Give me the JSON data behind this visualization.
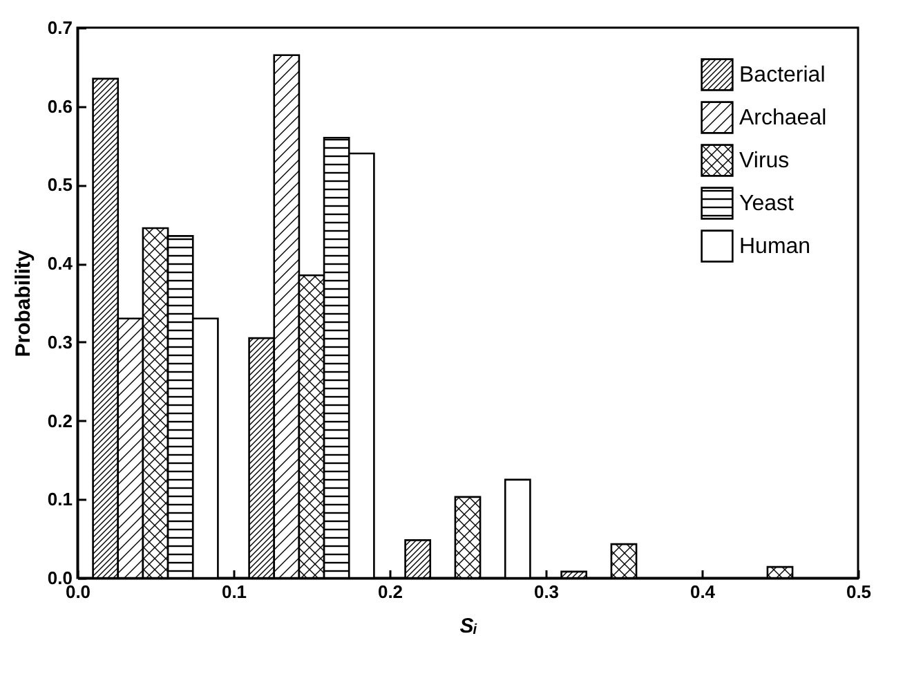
{
  "chart_data": {
    "type": "bar",
    "xlabel": "Sᵢ",
    "ylabel": "Probability",
    "xlim": [
      0,
      0.5
    ],
    "xticks": [
      {
        "value": 0,
        "label": "0.0"
      },
      0.1,
      0.2,
      0.3,
      0.4,
      0.5
    ],
    "ylim": [
      0,
      0.7
    ],
    "yticks": [
      {
        "value": 0,
        "label": "0.0"
      },
      0.1,
      0.2,
      0.3,
      0.4,
      0.5,
      0.6,
      0.7
    ],
    "legend": "top right",
    "grid": false,
    "series": [
      {
        "name": "Bacterial",
        "color": "#000000",
        "x": [
          0.018,
          0.118,
          0.218,
          0.318
        ],
        "values": [
          0.635,
          0.305,
          0.048,
          0.008
        ]
      },
      {
        "name": "Archaeal",
        "color": "#000000",
        "x": [
          0.034,
          0.134
        ],
        "values": [
          0.33,
          0.665
        ]
      },
      {
        "name": "Virus",
        "color": "#000000",
        "x": [
          0.05,
          0.15,
          0.25,
          0.35,
          0.45
        ],
        "values": [
          0.445,
          0.385,
          0.103,
          0.043,
          0.014
        ]
      },
      {
        "name": "Yeast",
        "color": "#000000",
        "x": [
          0.066,
          0.166
        ],
        "values": [
          0.435,
          0.56
        ]
      },
      {
        "name": "Human",
        "color": "#000000",
        "x": [
          0.082,
          0.182,
          0.282
        ],
        "values": [
          0.33,
          0.54,
          0.125
        ]
      }
    ]
  }
}
